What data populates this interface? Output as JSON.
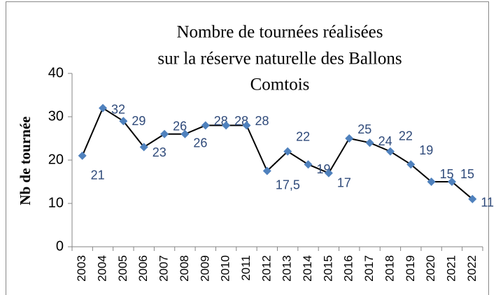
{
  "chart_data": {
    "type": "line",
    "title": [
      "Nombre de tournées réalisées",
      "sur la réserve naturelle des Ballons",
      "Comtois"
    ],
    "y_label": "Nb de tournée",
    "categories": [
      "2003",
      "2004",
      "2005",
      "2006",
      "2007",
      "2008",
      "2009",
      "2010",
      "2011",
      "2012",
      "2013",
      "2014",
      "2015",
      "2016",
      "2017",
      "2018",
      "2019",
      "2020",
      "2021",
      "2022"
    ],
    "series": [
      {
        "name": "Nb de tournée",
        "color": "#4f81bd",
        "line_color": "#000000",
        "values": [
          21,
          32,
          29,
          23,
          26,
          26,
          28,
          28,
          28,
          17.5,
          22,
          19,
          17,
          25,
          24,
          22,
          19,
          15,
          15,
          11
        ],
        "value_labels": [
          "21",
          "32",
          "29",
          "23",
          "26",
          "26",
          "28",
          "28",
          "28",
          "17,5",
          "22",
          "19",
          "17",
          "25",
          "24",
          "22",
          "19",
          "15",
          "15",
          "11"
        ]
      }
    ],
    "ylim": [
      0,
      40
    ],
    "yticks": [
      0,
      10,
      20,
      30,
      40
    ],
    "grid": false
  }
}
